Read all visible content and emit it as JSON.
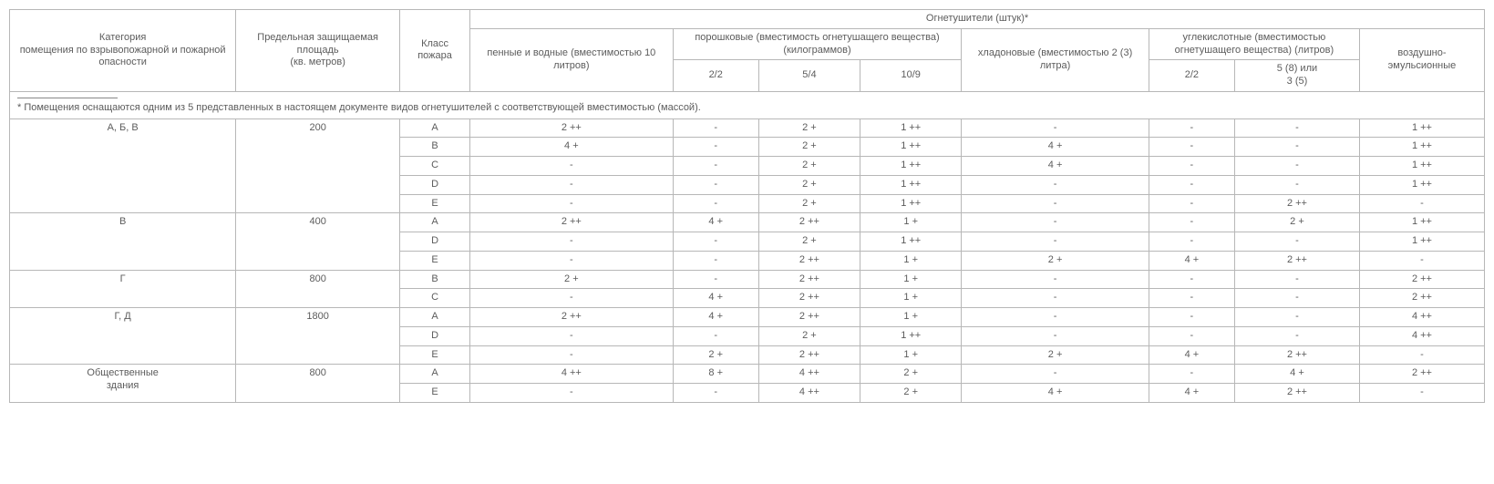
{
  "table": {
    "columns": [
      "c0",
      "c1",
      "c2",
      "c3",
      "c4",
      "c5",
      "c6",
      "c7",
      "c8",
      "c9",
      "c10"
    ],
    "head": {
      "category": "Категория\nпомещения по взрывопожарной и пожарной опасности",
      "area": "Предельная защищаемая площадь\n(кв. метров)",
      "fireclass": "Класс\nпожара",
      "ext_group": "Огнетушители (штук)*",
      "foam": "пенные и водные (вместимостью 10 литров)",
      "powder": "порошковые (вместимость огнетушащего вещества) (килограммов)",
      "p22": "2/2",
      "p54": "5/4",
      "p109": "10/9",
      "halon": "хладоновые (вместимостью 2 (3) литра)",
      "co2": "углекислотные (вместимостью огнетушащего вещества) (литров)",
      "c22": "2/2",
      "c58": "5 (8) или\n3 (5)",
      "air": "воздушно-\nэмульсионные"
    },
    "footnote": "* Помещения оснащаются одним из 5 представленных в настоящем документе видов огнетушителей с соответствующей вместимостью (массой).",
    "groups": [
      {
        "category": "А, Б, В",
        "area": "200",
        "rows": [
          {
            "cls": "А",
            "foam": "2 ++",
            "p22": "-",
            "p54": "2 +",
            "p109": "1 ++",
            "halon": "-",
            "c22": "-",
            "c58": "-",
            "air": "1 ++"
          },
          {
            "cls": "В",
            "foam": "4 +",
            "p22": "-",
            "p54": "2 +",
            "p109": "1 ++",
            "halon": "4 +",
            "c22": "-",
            "c58": "-",
            "air": "1 ++"
          },
          {
            "cls": "С",
            "foam": "-",
            "p22": "-",
            "p54": "2 +",
            "p109": "1 ++",
            "halon": "4 +",
            "c22": "-",
            "c58": "-",
            "air": "1 ++"
          },
          {
            "cls": "D",
            "foam": "-",
            "p22": "-",
            "p54": "2 +",
            "p109": "1 ++",
            "halon": "-",
            "c22": "-",
            "c58": "-",
            "air": "1 ++"
          },
          {
            "cls": "Е",
            "foam": "-",
            "p22": "-",
            "p54": "2 +",
            "p109": "1 ++",
            "halon": "-",
            "c22": "-",
            "c58": "2 ++",
            "air": "-"
          }
        ]
      },
      {
        "category": "В",
        "area": "400",
        "rows": [
          {
            "cls": "А",
            "foam": "2 ++",
            "p22": "4 +",
            "p54": "2 ++",
            "p109": "1 +",
            "halon": "-",
            "c22": "-",
            "c58": "2 +",
            "air": "1 ++"
          },
          {
            "cls": "D",
            "foam": "-",
            "p22": "-",
            "p54": "2 +",
            "p109": "1 ++",
            "halon": "-",
            "c22": "-",
            "c58": "-",
            "air": "1 ++"
          },
          {
            "cls": "Е",
            "foam": "-",
            "p22": "-",
            "p54": "2 ++",
            "p109": "1 +",
            "halon": "2 +",
            "c22": "4 +",
            "c58": "2 ++",
            "air": "-"
          }
        ]
      },
      {
        "category": "Г",
        "area": "800",
        "rows": [
          {
            "cls": "В",
            "foam": "2 +",
            "p22": "-",
            "p54": "2 ++",
            "p109": "1 +",
            "halon": "-",
            "c22": "-",
            "c58": "-",
            "air": "2 ++"
          },
          {
            "cls": "С",
            "foam": "-",
            "p22": "4 +",
            "p54": "2 ++",
            "p109": "1 +",
            "halon": "-",
            "c22": "-",
            "c58": "-",
            "air": "2 ++"
          }
        ]
      },
      {
        "category": "Г, Д",
        "area": "1800",
        "rows": [
          {
            "cls": "А",
            "foam": "2 ++",
            "p22": "4 +",
            "p54": "2 ++",
            "p109": "1 +",
            "halon": "-",
            "c22": "-",
            "c58": "-",
            "air": "4 ++"
          },
          {
            "cls": "D",
            "foam": "-",
            "p22": "-",
            "p54": "2 +",
            "p109": "1 ++",
            "halon": "-",
            "c22": "-",
            "c58": "-",
            "air": "4 ++"
          },
          {
            "cls": "Е",
            "foam": "-",
            "p22": "2 +",
            "p54": "2 ++",
            "p109": "1 +",
            "halon": "2 +",
            "c22": "4 +",
            "c58": "2 ++",
            "air": "-"
          }
        ]
      },
      {
        "category": "Общественные\nздания",
        "area": "800",
        "rows": [
          {
            "cls": "А",
            "foam": "4 ++",
            "p22": "8 +",
            "p54": "4 ++",
            "p109": "2 +",
            "halon": "-",
            "c22": "-",
            "c58": "4 +",
            "air": "2 ++"
          },
          {
            "cls": "Е",
            "foam": "-",
            "p22": "-",
            "p54": "4 ++",
            "p109": "2 +",
            "halon": "4 +",
            "c22": "4 +",
            "c58": "2 ++",
            "air": "-"
          }
        ]
      }
    ]
  },
  "style": {
    "font_family": "Arial",
    "font_size_pt": 8,
    "text_color": "#5c5c5c",
    "border_color": "#b7b7b7",
    "background_color": "#ffffff"
  }
}
